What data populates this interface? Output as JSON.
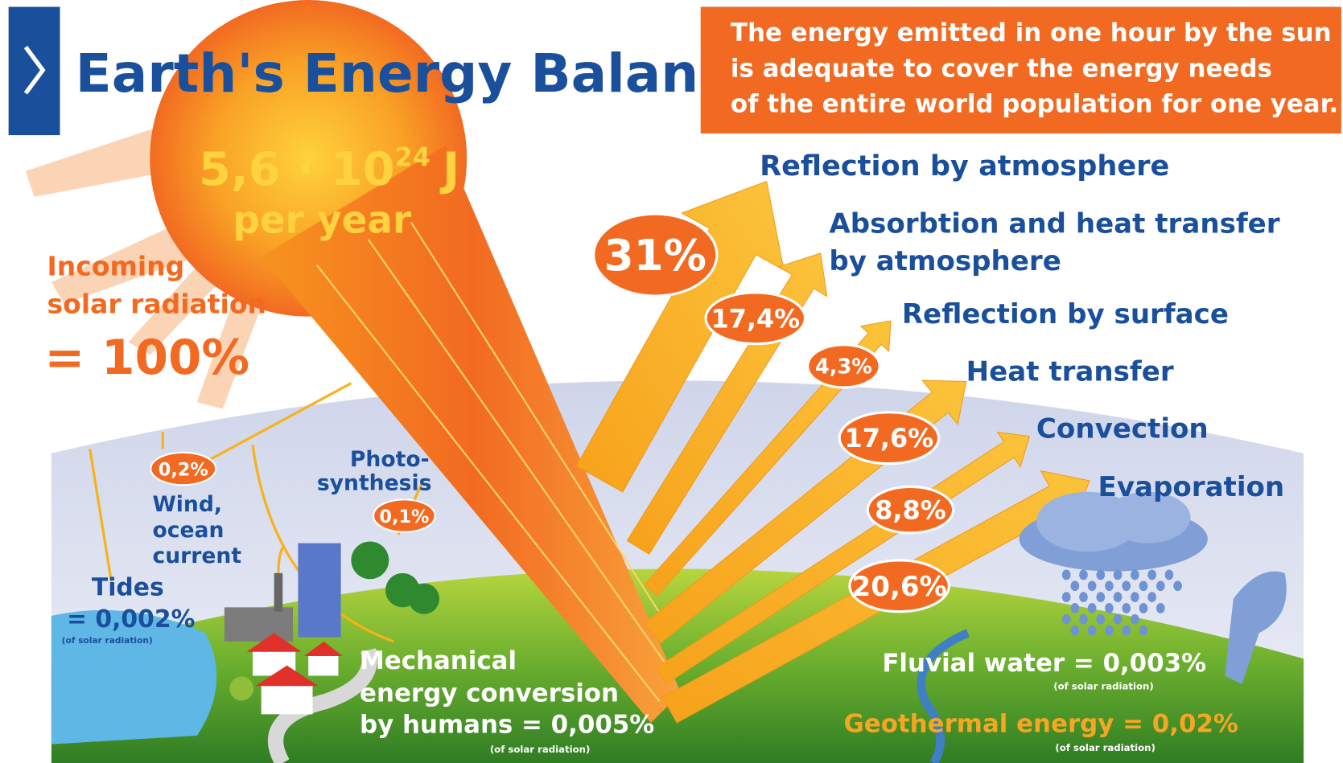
{
  "header": {
    "title": "Earth's Energy Balance"
  },
  "callout": {
    "lines": [
      "The energy emitted in one hour by the sun",
      "is adequate to cover the energy needs",
      "of the entire world population for one year."
    ]
  },
  "sun": {
    "value": "5,6 · 10",
    "exponent": "24",
    "unit": "J",
    "period": "per year"
  },
  "incoming": {
    "lines": [
      "Incoming",
      "solar radiation"
    ],
    "total": "= 100%"
  },
  "flows": [
    {
      "label_lines": [
        "Reflection by atmosphere"
      ],
      "percent": "31%"
    },
    {
      "label_lines": [
        "Absorbtion and heat transfer",
        "by atmosphere"
      ],
      "percent": "17,4%"
    },
    {
      "label_lines": [
        "Reflection by surface"
      ],
      "percent": "4,3%"
    },
    {
      "label_lines": [
        "Heat transfer"
      ],
      "percent": "17,6%"
    },
    {
      "label_lines": [
        "Convection"
      ],
      "percent": "8,8%"
    },
    {
      "label_lines": [
        "Evaporation"
      ],
      "percent": "20,6%"
    }
  ],
  "wind": {
    "percent": "0,2%",
    "lines": [
      "Wind,",
      "ocean",
      "current"
    ]
  },
  "photosynthesis": {
    "percent": "0,1%",
    "lines": [
      "Photo-",
      "synthesis"
    ]
  },
  "tides": {
    "label": "Tides",
    "value": "= 0,002%",
    "note": "(of solar radiation)"
  },
  "mechanical": {
    "lines": [
      "Mechanical",
      "energy conversion",
      "by humans = 0,005%"
    ],
    "note": "(of solar radiation)"
  },
  "fluvial": {
    "label": "Fluvial water = 0,003%",
    "note": "(of solar radiation)"
  },
  "geothermal": {
    "label": "Geothermal energy = 0,02%",
    "note": "(of solar radiation)"
  }
}
